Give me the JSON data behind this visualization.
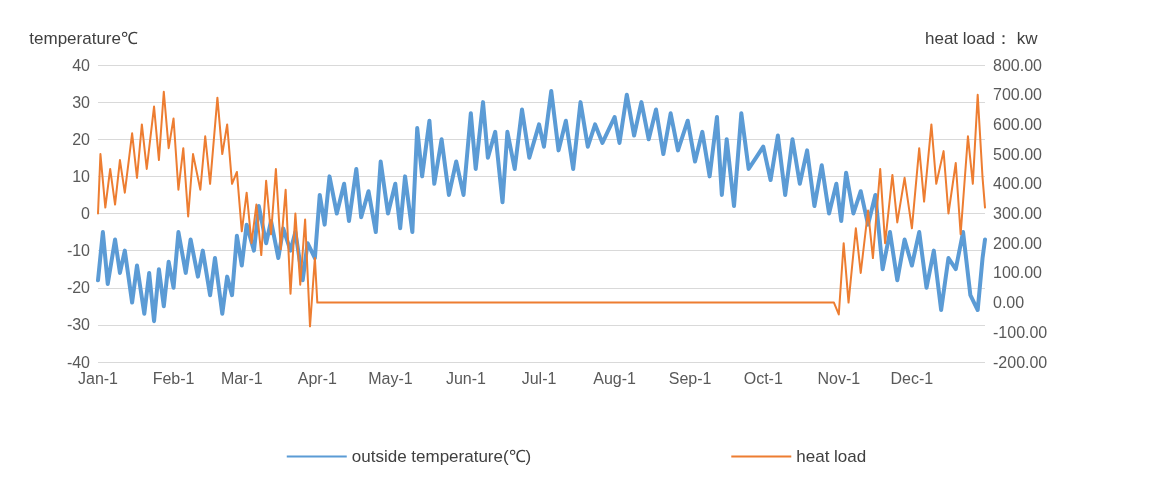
{
  "chart_data": {
    "type": "line",
    "xlabel": null,
    "ylabel": "temperature℃",
    "y2label": "heat load： kw",
    "xlim": [
      "--01-01",
      "--12-31"
    ],
    "xticks": [
      {
        "value": "--01-01",
        "label": "Jan-1"
      },
      {
        "value": "--02-01",
        "label": "Feb-1"
      },
      {
        "value": "--03-01",
        "label": "Mar-1"
      },
      {
        "value": "--04-01",
        "label": "Apr-1"
      },
      {
        "value": "--05-01",
        "label": "May-1"
      },
      {
        "value": "--06-01",
        "label": "Jun-1"
      },
      {
        "value": "--07-01",
        "label": "Jul-1"
      },
      {
        "value": "--08-01",
        "label": "Aug-1"
      },
      {
        "value": "--09-01",
        "label": "Sep-1"
      },
      {
        "value": "--10-01",
        "label": "Oct-1"
      },
      {
        "value": "--11-01",
        "label": "Nov-1"
      },
      {
        "value": "--12-01",
        "label": "Dec-1"
      }
    ],
    "ylim": [
      -40,
      40
    ],
    "yticks": [
      -40,
      -30,
      -20,
      -10,
      0,
      10,
      20,
      30,
      40
    ],
    "y2lim": [
      -200,
      800
    ],
    "y2ticks": [
      {
        "value": -200,
        "label": "-200.00"
      },
      {
        "value": -100,
        "label": "-100.00"
      },
      {
        "value": 0,
        "label": "0.00"
      },
      {
        "value": 100,
        "label": "100.00"
      },
      {
        "value": 200,
        "label": "200.00"
      },
      {
        "value": 300,
        "label": "300.00"
      },
      {
        "value": 400,
        "label": "400.00"
      },
      {
        "value": 500,
        "label": "500.00"
      },
      {
        "value": 600,
        "label": "600.00"
      },
      {
        "value": 700,
        "label": "700.00"
      },
      {
        "value": 800,
        "label": "800.00"
      }
    ],
    "grid": "y",
    "legend": "bottom",
    "marker": "none",
    "line_style": "solid",
    "series": [
      {
        "name": "outside temperature(℃)",
        "color": "#5b9bd5",
        "x": [
          "--01-01",
          "--01-03",
          "--01-05",
          "--01-08",
          "--01-10",
          "--01-12",
          "--01-15",
          "--01-17",
          "--01-20",
          "--01-22",
          "--01-24",
          "--01-26",
          "--01-28",
          "--01-30",
          "--02-01",
          "--02-03",
          "--02-06",
          "--02-08",
          "--02-11",
          "--02-13",
          "--02-16",
          "--02-18",
          "--02-21",
          "--02-23",
          "--02-25",
          "--02-27",
          "--03-01",
          "--03-03",
          "--03-06",
          "--03-08",
          "--03-11",
          "--03-13",
          "--03-16",
          "--03-18",
          "--03-21",
          "--03-23",
          "--03-26",
          "--03-28",
          "--03-31",
          "--04-02",
          "--04-04",
          "--04-06",
          "--04-09",
          "--04-12",
          "--04-14",
          "--04-17",
          "--04-19",
          "--04-22",
          "--04-25",
          "--04-27",
          "--04-30",
          "--05-03",
          "--05-05",
          "--05-07",
          "--05-10",
          "--05-12",
          "--05-14",
          "--05-17",
          "--05-19",
          "--05-22",
          "--05-25",
          "--05-28",
          "--05-31",
          "--06-03",
          "--06-05",
          "--06-08",
          "--06-10",
          "--06-13",
          "--06-16",
          "--06-18",
          "--06-21",
          "--06-24",
          "--06-27",
          "--07-01",
          "--07-03",
          "--07-06",
          "--07-09",
          "--07-12",
          "--07-15",
          "--07-18",
          "--07-21",
          "--07-24",
          "--07-27",
          "--08-01",
          "--08-03",
          "--08-06",
          "--08-09",
          "--08-12",
          "--08-15",
          "--08-18",
          "--08-21",
          "--08-24",
          "--08-27",
          "--08-31",
          "--09-03",
          "--09-06",
          "--09-09",
          "--09-12",
          "--09-14",
          "--09-16",
          "--09-19",
          "--09-22",
          "--09-25",
          "--09-28",
          "--10-01",
          "--10-04",
          "--10-07",
          "--10-10",
          "--10-13",
          "--10-16",
          "--10-19",
          "--10-22",
          "--10-25",
          "--10-28",
          "--10-31",
          "--11-02",
          "--11-04",
          "--11-07",
          "--11-10",
          "--11-13",
          "--11-16",
          "--11-19",
          "--11-22",
          "--11-25",
          "--11-28",
          "--12-01",
          "--12-04",
          "--12-07",
          "--12-10",
          "--12-13",
          "--12-16",
          "--12-19",
          "--12-22",
          "--12-25",
          "--12-28",
          "--12-30",
          "--12-31"
        ],
        "values": [
          -18,
          -5,
          -19,
          -7,
          -16,
          -10,
          -24,
          -14,
          -27,
          -16,
          -29,
          -15,
          -25,
          -13,
          -20,
          -5,
          -16,
          -7,
          -17,
          -10,
          -22,
          -12,
          -27,
          -17,
          -22,
          -6,
          -14,
          -3,
          -10,
          2,
          -8,
          -2,
          -12,
          -4,
          -10,
          -5,
          -18,
          -8,
          -12,
          5,
          -3,
          10,
          0,
          8,
          -2,
          12,
          -1,
          6,
          -5,
          14,
          0,
          8,
          -4,
          10,
          -5,
          23,
          10,
          25,
          8,
          20,
          5,
          14,
          5,
          27,
          12,
          30,
          15,
          22,
          3,
          22,
          12,
          28,
          15,
          24,
          18,
          33,
          17,
          25,
          12,
          30,
          18,
          24,
          19,
          26,
          19,
          32,
          21,
          30,
          20,
          28,
          16,
          27,
          17,
          25,
          14,
          22,
          10,
          26,
          5,
          20,
          2,
          27,
          12,
          15,
          18,
          9,
          21,
          5,
          20,
          8,
          17,
          2,
          13,
          0,
          8,
          -2,
          11,
          0,
          6,
          -3,
          5,
          -15,
          -5,
          -18,
          -7,
          -14,
          -5,
          -20,
          -10,
          -26,
          -12,
          -15,
          -5,
          -22,
          -26,
          -12,
          -7
        ]
      },
      {
        "name": "heat load",
        "color": "#ed7d31",
        "axis": "y2",
        "x": [
          "--01-01",
          "--01-02",
          "--01-04",
          "--01-06",
          "--01-08",
          "--01-10",
          "--01-12",
          "--01-15",
          "--01-17",
          "--01-19",
          "--01-21",
          "--01-24",
          "--01-26",
          "--01-28",
          "--01-30",
          "--02-01",
          "--02-03",
          "--02-05",
          "--02-07",
          "--02-09",
          "--02-12",
          "--02-14",
          "--02-16",
          "--02-19",
          "--02-21",
          "--02-23",
          "--02-25",
          "--02-27",
          "--03-01",
          "--03-03",
          "--03-05",
          "--03-07",
          "--03-09",
          "--03-11",
          "--03-13",
          "--03-15",
          "--03-17",
          "--03-19",
          "--03-21",
          "--03-23",
          "--03-25",
          "--03-27",
          "--03-29",
          "--03-31",
          "--04-01",
          "--10-30",
          "--11-01",
          "--11-03",
          "--11-05",
          "--11-08",
          "--11-10",
          "--11-13",
          "--11-15",
          "--11-18",
          "--11-20",
          "--11-23",
          "--11-25",
          "--11-28",
          "--12-01",
          "--12-04",
          "--12-06",
          "--12-09",
          "--12-11",
          "--12-14",
          "--12-16",
          "--12-19",
          "--12-21",
          "--12-24",
          "--12-26",
          "--12-28",
          "--12-30",
          "--12-31"
        ],
        "values": [
          300,
          500,
          320,
          450,
          330,
          480,
          370,
          570,
          420,
          600,
          450,
          660,
          480,
          710,
          520,
          620,
          380,
          520,
          290,
          500,
          380,
          560,
          400,
          690,
          500,
          600,
          400,
          440,
          240,
          370,
          200,
          330,
          160,
          410,
          230,
          450,
          180,
          380,
          30,
          300,
          60,
          280,
          -80,
          150,
          0,
          0,
          -40,
          200,
          0,
          250,
          100,
          310,
          150,
          450,
          200,
          430,
          270,
          420,
          250,
          520,
          340,
          600,
          400,
          510,
          300,
          470,
          230,
          560,
          400,
          700,
          420,
          320
        ]
      }
    ]
  }
}
